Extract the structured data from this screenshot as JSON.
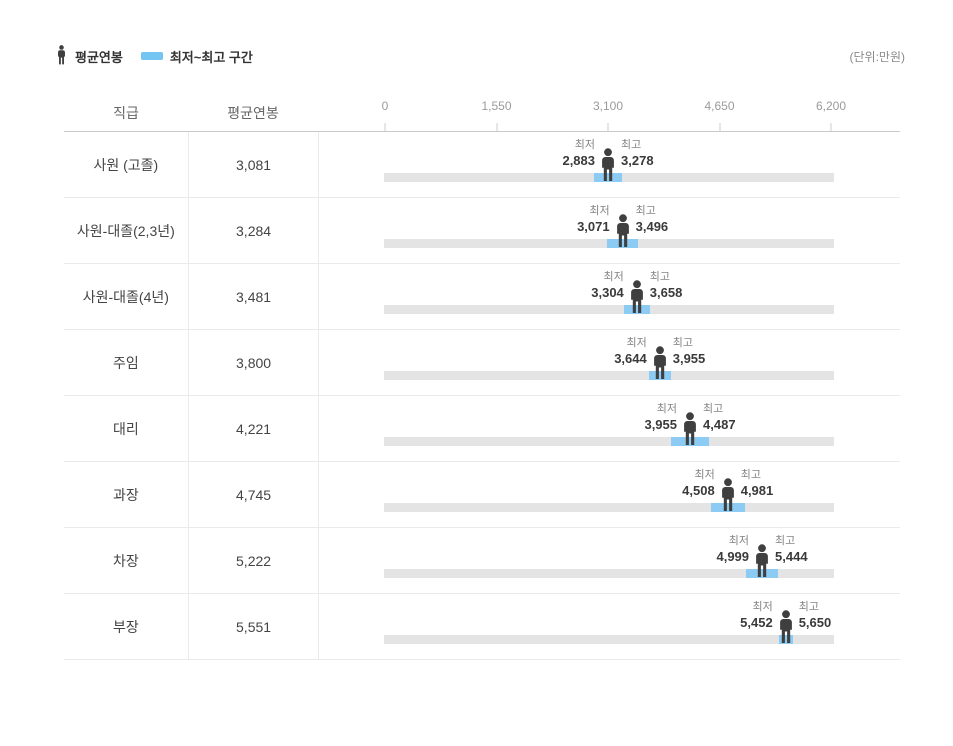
{
  "accent_blue": "#74c5f2",
  "range_bar_blue": "#8ccbf3",
  "track_gray": "#e4e4e4",
  "person_color": "#3f3f3f",
  "legend": {
    "average_label": "평균연봉",
    "range_label": "최저~최고 구간"
  },
  "unit_label": "(단위:만원)",
  "table": {
    "col_grade": "직급",
    "col_avg": "평균연봉"
  },
  "min_label": "최저",
  "max_label": "최고",
  "axis": {
    "max": 6200,
    "ticks": [
      {
        "label": "0",
        "value": 0
      },
      {
        "label": "1,550",
        "value": 1550
      },
      {
        "label": "3,100",
        "value": 3100
      },
      {
        "label": "4,650",
        "value": 4650
      },
      {
        "label": "6,200",
        "value": 6200
      }
    ]
  },
  "rows": [
    {
      "grade": "사원 (고졸)",
      "avg": "3,081",
      "min": "2,883",
      "max": "3,278",
      "avg_v": 3081,
      "min_v": 2883,
      "max_v": 3278
    },
    {
      "grade": "사원-대졸(2,3년)",
      "avg": "3,284",
      "min": "3,071",
      "max": "3,496",
      "avg_v": 3284,
      "min_v": 3071,
      "max_v": 3496
    },
    {
      "grade": "사원-대졸(4년)",
      "avg": "3,481",
      "min": "3,304",
      "max": "3,658",
      "avg_v": 3481,
      "min_v": 3304,
      "max_v": 3658
    },
    {
      "grade": "주임",
      "avg": "3,800",
      "min": "3,644",
      "max": "3,955",
      "avg_v": 3800,
      "min_v": 3644,
      "max_v": 3955
    },
    {
      "grade": "대리",
      "avg": "4,221",
      "min": "3,955",
      "max": "4,487",
      "avg_v": 4221,
      "min_v": 3955,
      "max_v": 4487
    },
    {
      "grade": "과장",
      "avg": "4,745",
      "min": "4,508",
      "max": "4,981",
      "avg_v": 4745,
      "min_v": 4508,
      "max_v": 4981
    },
    {
      "grade": "차장",
      "avg": "5,222",
      "min": "4,999",
      "max": "5,444",
      "avg_v": 5222,
      "min_v": 4999,
      "max_v": 5444
    },
    {
      "grade": "부장",
      "avg": "5,551",
      "min": "5,452",
      "max": "5,650",
      "avg_v": 5551,
      "min_v": 5452,
      "max_v": 5650
    }
  ],
  "chart_data": {
    "type": "bar",
    "subtype": "range-dumbbell",
    "categories": [
      "사원 (고졸)",
      "사원-대졸(2,3년)",
      "사원-대졸(4년)",
      "주임",
      "대리",
      "과장",
      "차장",
      "부장"
    ],
    "series": [
      {
        "name": "최저",
        "values": [
          2883,
          3071,
          3304,
          3644,
          3955,
          4508,
          4999,
          5452
        ]
      },
      {
        "name": "평균연봉",
        "values": [
          3081,
          3284,
          3481,
          3800,
          4221,
          4745,
          5222,
          5551
        ]
      },
      {
        "name": "최고",
        "values": [
          3278,
          3496,
          3658,
          3955,
          4487,
          4981,
          5444,
          5650
        ]
      }
    ],
    "title": "",
    "xlabel": "",
    "ylabel": "",
    "xlim": [
      0,
      6200
    ],
    "axis_ticks": [
      0,
      1550,
      3100,
      4650,
      6200
    ],
    "unit": "만원",
    "legend_entries": [
      "평균연봉",
      "최저~최고 구간"
    ],
    "legend_position": "top-left",
    "grid": false
  }
}
